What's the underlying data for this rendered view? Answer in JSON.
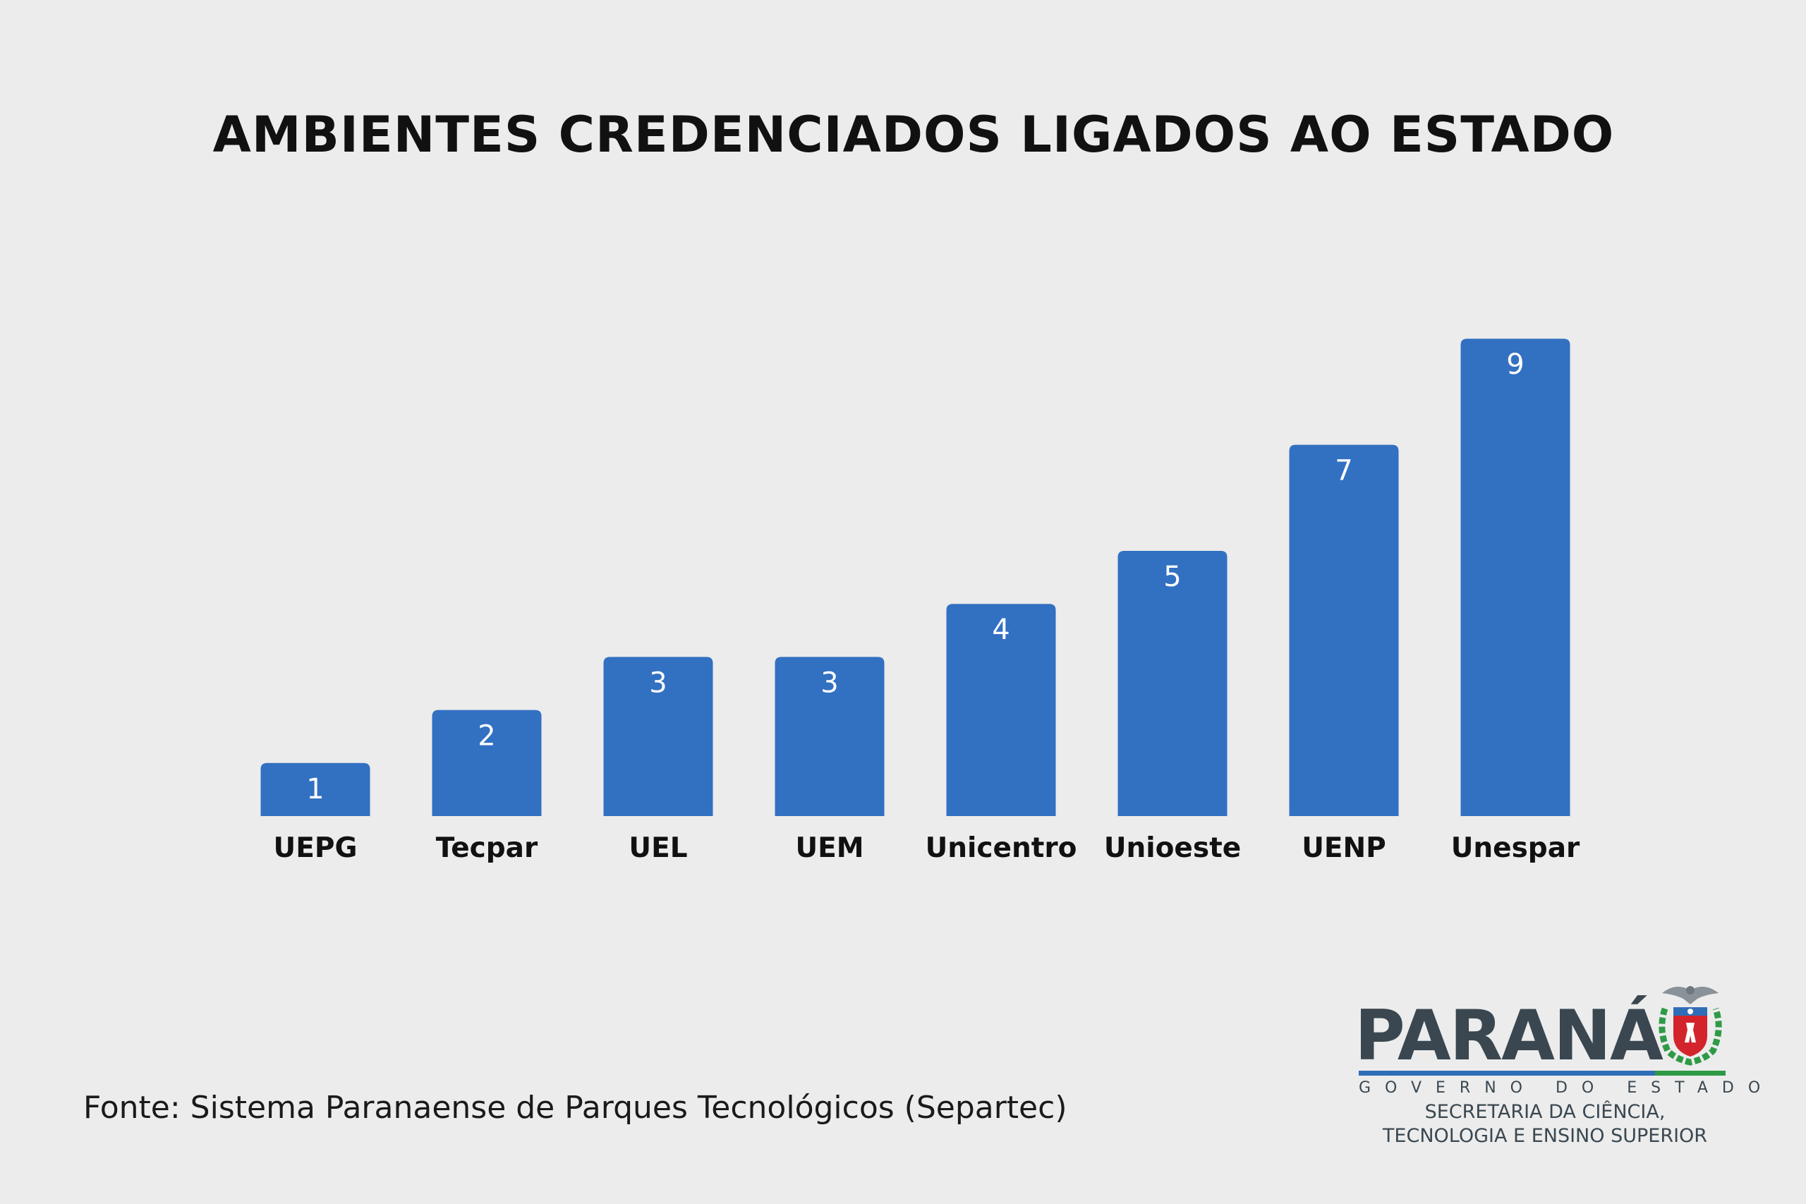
{
  "chart_data": {
    "type": "bar",
    "title": "AMBIENTES CREDENCIADOS LIGADOS AO ESTADO",
    "categories": [
      "UEPG",
      "Tecpar",
      "UEL",
      "UEM",
      "Unicentro",
      "Unioeste",
      "UENP",
      "Unespar"
    ],
    "values": [
      1,
      2,
      3,
      3,
      4,
      5,
      7,
      9
    ],
    "xlabel": "",
    "ylabel": "",
    "ylim": [
      0,
      9
    ],
    "grid": false,
    "legend": "none",
    "bar_color": "#3270c2",
    "value_label_color": "#ffffff"
  },
  "source": "Fonte: Sistema Paranaense de Parques Tecnológicos (Separtec)",
  "logo": {
    "word": "PARANÁ",
    "subtitle": "GOVERNO DO ESTADO",
    "secretariat_line1": "SECRETARIA DA CIÊNCIA,",
    "secretariat_line2": "TECNOLOGIA E ENSINO SUPERIOR",
    "seal_icon": "parana-coat-of-arms-icon",
    "colors": {
      "text": "#3a4750",
      "blue": "#2f6db8",
      "green": "#2f9a46",
      "red": "#d3242b"
    }
  }
}
